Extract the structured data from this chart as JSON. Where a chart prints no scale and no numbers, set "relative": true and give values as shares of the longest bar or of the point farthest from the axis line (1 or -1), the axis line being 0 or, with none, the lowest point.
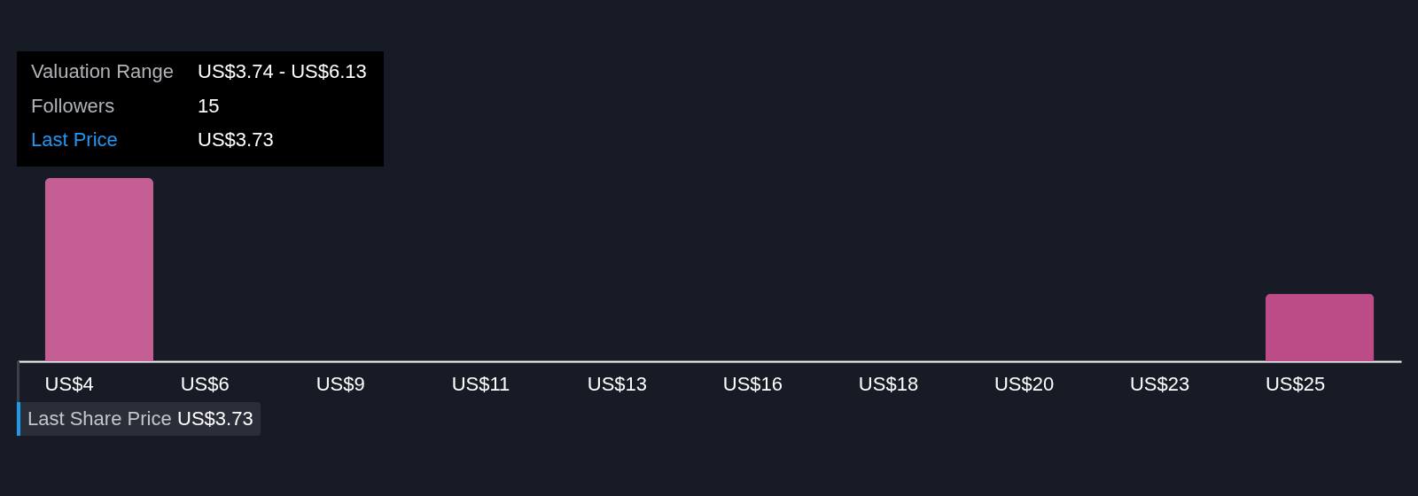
{
  "chart_data": {
    "type": "bar",
    "relative": true,
    "categories": [
      "US$4",
      "US$6",
      "US$9",
      "US$11",
      "US$13",
      "US$16",
      "US$18",
      "US$20",
      "US$23",
      "US$25"
    ],
    "values": [
      1,
      null,
      null,
      null,
      null,
      null,
      null,
      null,
      null,
      0.37
    ],
    "colors": [
      "#c45e94",
      null,
      null,
      null,
      null,
      null,
      null,
      null,
      null,
      "#bb4c87"
    ],
    "annotations": [
      "Valuation Range",
      "US$3.74 - US$6.13",
      "Followers",
      "15",
      "Last Price",
      "US$3.73",
      "Last Share Price",
      "US$3.73"
    ]
  }
}
